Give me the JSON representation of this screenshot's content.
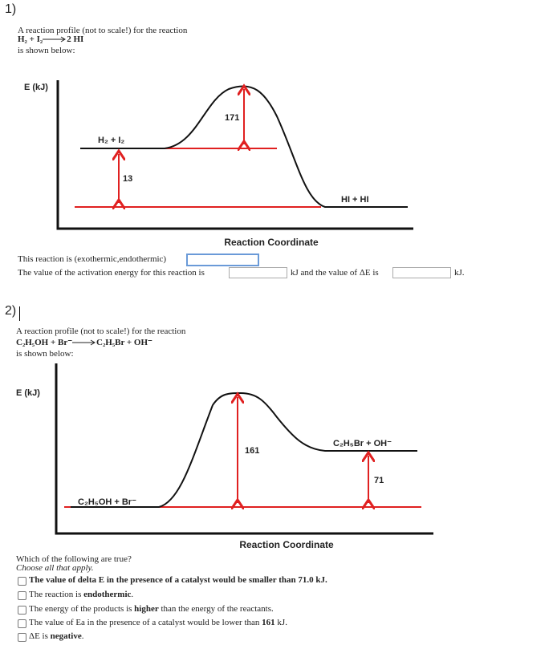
{
  "question1": {
    "number": "1)",
    "intro": "A reaction profile (not to scale!) for the reaction",
    "reaction_left": "H₂ + I₂",
    "reaction_right": "2 HI",
    "shown": "is shown below:",
    "diagram": {
      "y_label": "E (kJ)",
      "reactants": "H₂ + I₂",
      "products": "HI + HI",
      "activation_label": "171",
      "delta_label": "13",
      "x_label": "Reaction Coordinate"
    },
    "sentence1": "This reaction is (exothermic,endothermic)",
    "sentence2": "The value of the activation energy for this reaction is",
    "sentence2_mid": "kJ and the value of ΔE is",
    "sentence2_end": "kJ."
  },
  "question2": {
    "number": "2)",
    "intro": "A reaction profile (not to scale!) for the reaction",
    "reaction_left": "C₂H₅OH + Br⁻",
    "reaction_right": "C₂H₅Br + OH⁻",
    "shown": "is shown below:",
    "diagram": {
      "y_label": "E (kJ)",
      "reactants": "C₂H₅OH + Br⁻",
      "products": "C₂H₅Br + OH⁻",
      "activation_label": "161",
      "delta_label": "71",
      "x_label": "Reaction Coordinate"
    },
    "prompt": "Which of the following are true?",
    "instruction": "Choose all that apply.",
    "options": [
      [
        "The value of delta E in the presence of a catalyst would be smaller than 71.0 kJ."
      ],
      [
        "The reaction is ",
        "endothermic",
        "."
      ],
      [
        "The energy of the products is ",
        "higher",
        " than the energy of the reactants."
      ],
      [
        "The value of Ea in the presence of a catalyst would be lower than ",
        "161",
        " kJ."
      ],
      [
        "ΔE is ",
        "negative",
        "."
      ]
    ]
  }
}
